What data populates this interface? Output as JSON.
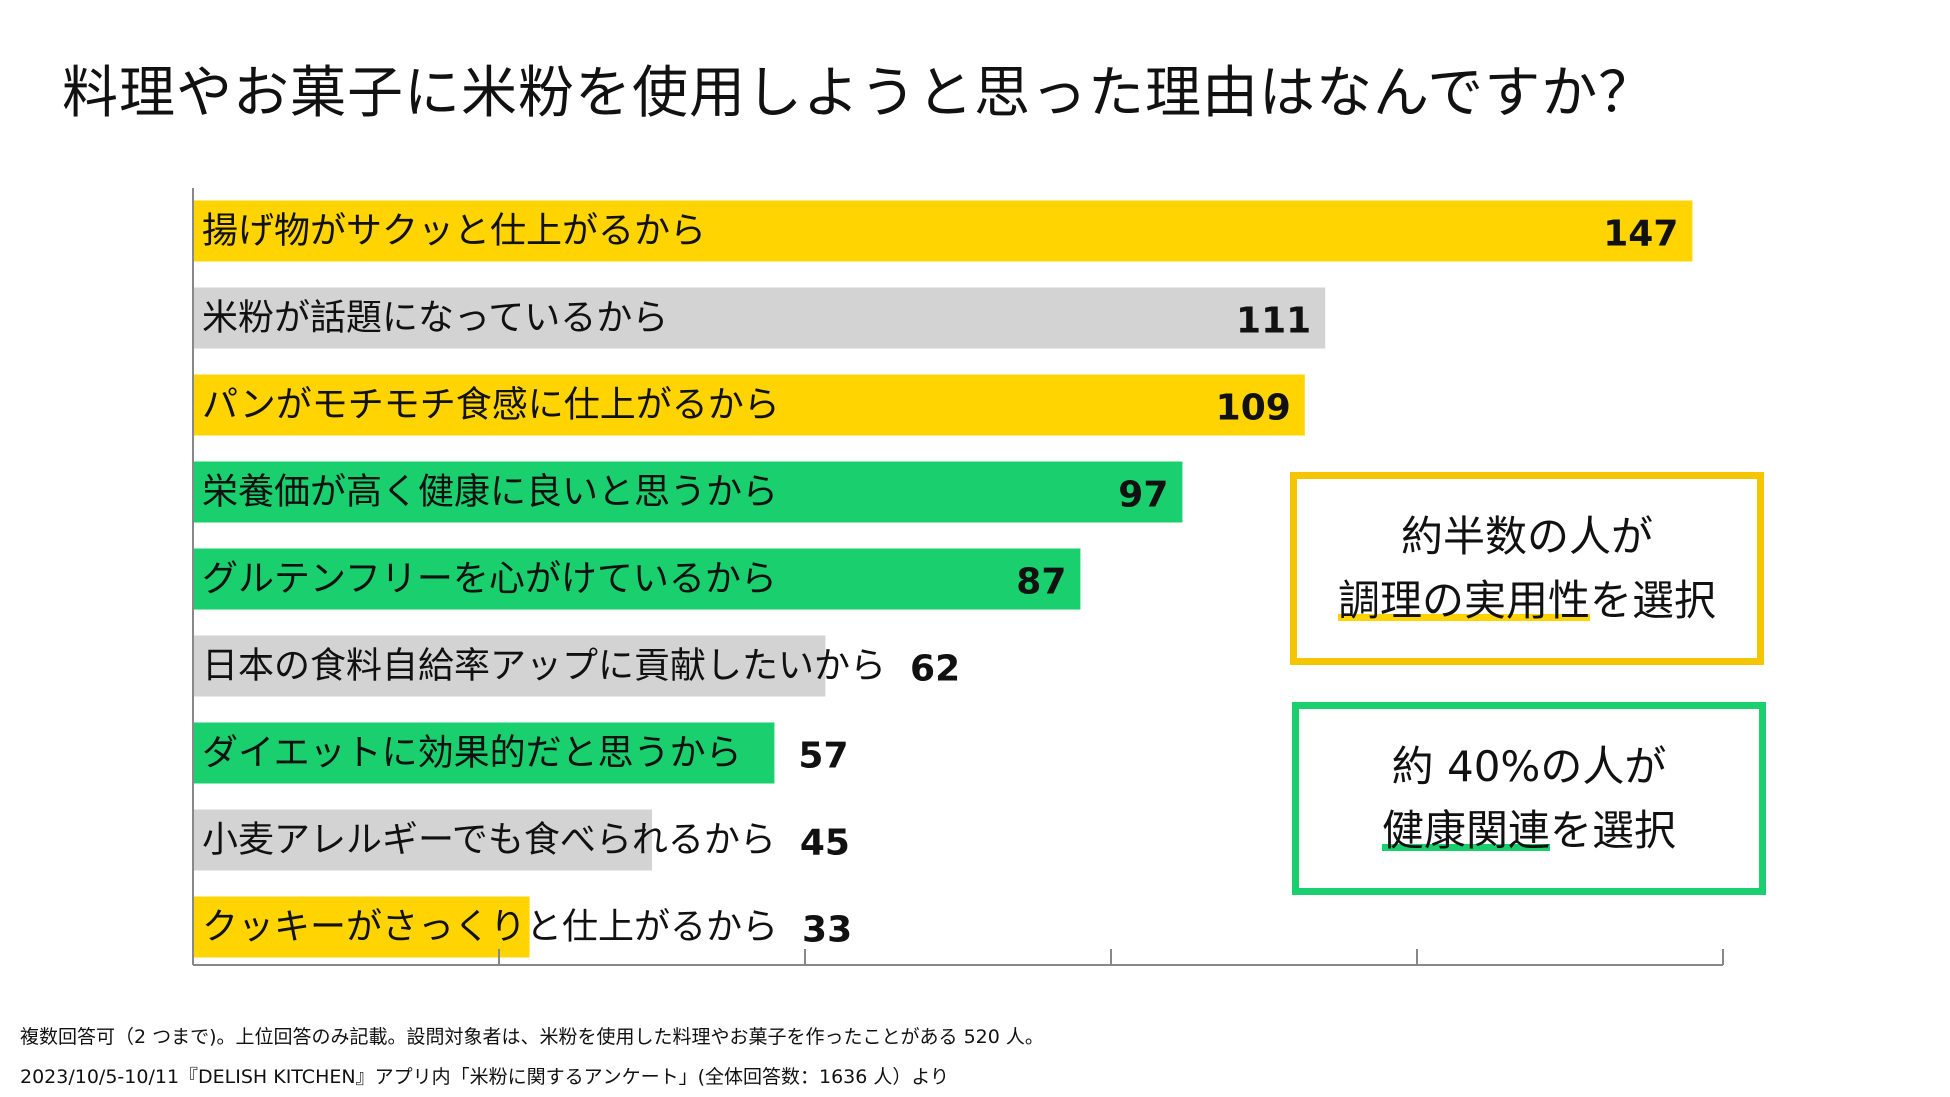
{
  "title": "料理やお菓子に米粉を使用しようと思った理由はなんですか？",
  "colors": {
    "yellow": "#ffd400",
    "gray": "#d3d3d3",
    "green": "#19cf6e",
    "axis": "#888888"
  },
  "chart_data": {
    "type": "bar",
    "orientation": "horizontal",
    "title": "料理やお菓子に米粉を使用しようと思った理由はなんですか？",
    "categories": [
      "揚げ物がサクッと仕上がるから",
      "米粉が話題になっているから",
      "パンがモチモチ食感に仕上がるから",
      "栄養価が高く健康に良いと思うから",
      "グルテンフリーを心がけているから",
      "日本の食料自給率アップに貢献したいから",
      "ダイエットに効果的だと思うから",
      "小麦アレルギーでも食べられるから",
      "クッキーがさっくりと仕上がるから"
    ],
    "values": [
      147,
      111,
      109,
      97,
      87,
      62,
      57,
      45,
      33
    ],
    "bar_groups": [
      "yellow",
      "gray",
      "yellow",
      "green",
      "green",
      "gray",
      "green",
      "gray",
      "yellow"
    ],
    "xlim": [
      0,
      150
    ],
    "grid": false
  },
  "callouts": [
    {
      "line1": "約半数の人が",
      "line2_highlight": "調理の実用性",
      "line2_rest": "を選択"
    },
    {
      "line1": "約 40%の人が",
      "line2_highlight": "健康関連",
      "line2_rest": "を選択"
    }
  ],
  "notes": [
    "複数回答可（2 つまで)。上位回答のみ記載。設問対象者は、米粉を使用した料理やお菓子を作ったことがある 520 人。",
    "2023/10/5-10/11『DELISH KITCHEN』アプリ内「米粉に関するアンケート」(全体回答数：1636 人）より"
  ]
}
